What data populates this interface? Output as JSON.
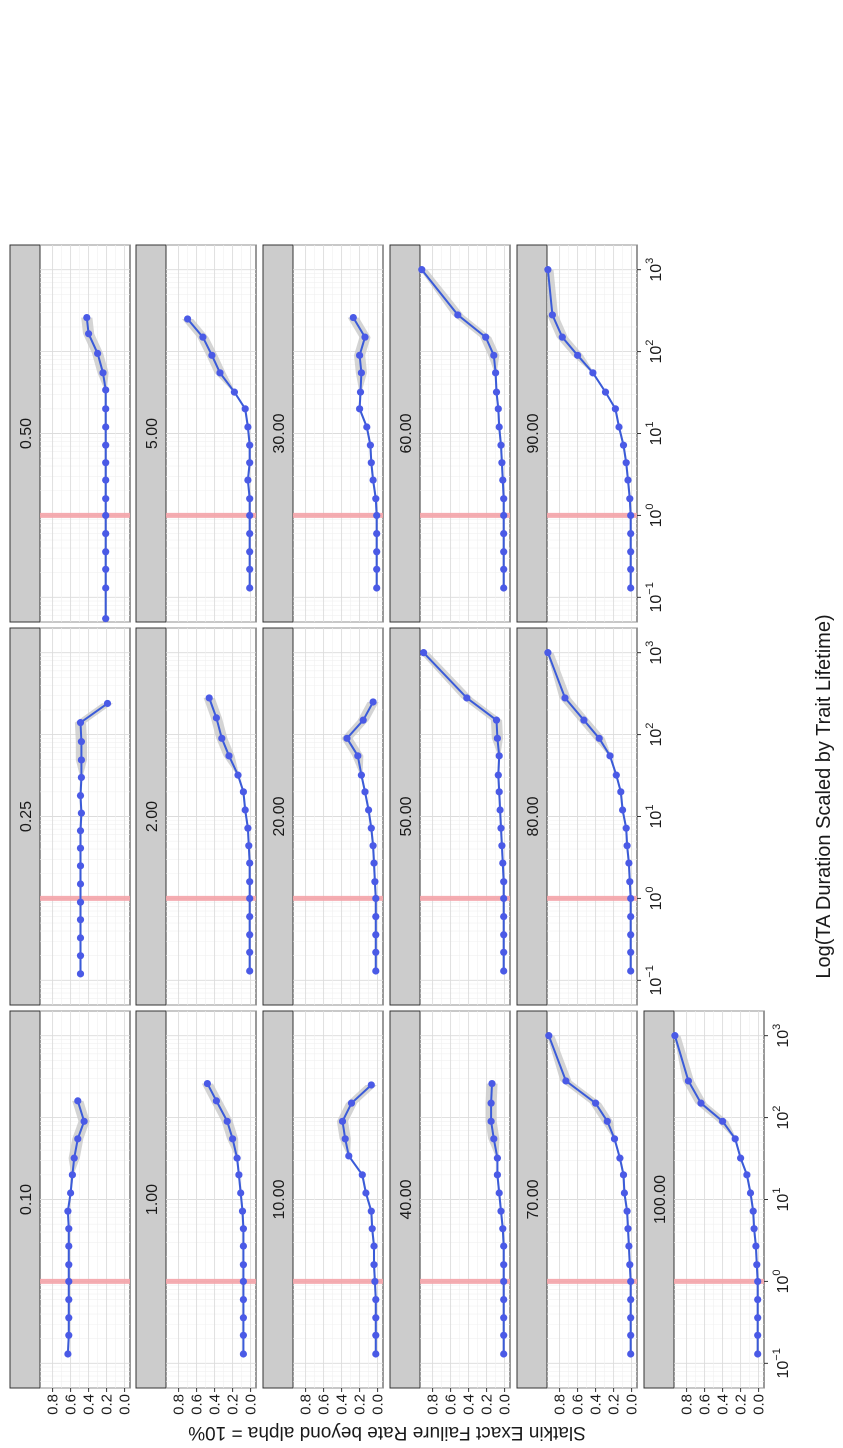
{
  "chart_data": {
    "type": "line",
    "ylabel": "Slatkin Exact Failure Rate beyond alpha = 10%",
    "xlabel": "Log(TA Duration Scaled by Trait Lifetime)",
    "xscale": "log",
    "xlim": [
      0.05,
      2000
    ],
    "ylim": [
      -0.06,
      0.94
    ],
    "x_ticks": [
      "0.1",
      "1",
      "10",
      "100",
      "1000"
    ],
    "x_tick_labels": [
      {
        "base": "10",
        "exp": "−1"
      },
      {
        "base": "10",
        "exp": "0"
      },
      {
        "base": "10",
        "exp": "1"
      },
      {
        "base": "10",
        "exp": "2"
      },
      {
        "base": "10",
        "exp": "3"
      }
    ],
    "y_ticks": [
      0.0,
      0.2,
      0.4,
      0.6,
      0.8
    ],
    "y_tick_labels": [
      "0.0",
      "0.2",
      "0.4",
      "0.6",
      "0.8"
    ],
    "reference_line": {
      "x": 1,
      "color": "#f4a3a8"
    },
    "line_color": "#3a5bd9",
    "point_color": "#4a5ae6",
    "band_color": "#c9c9c9",
    "strip_color": "#cccccc",
    "panels": [
      {
        "label": "0.10",
        "x": [
          0.13,
          0.22,
          0.36,
          0.6,
          1,
          1.6,
          2.7,
          4.4,
          7.2,
          12,
          20,
          32,
          55,
          90,
          160
        ],
        "y": [
          0.63,
          0.62,
          0.62,
          0.62,
          0.62,
          0.62,
          0.62,
          0.62,
          0.63,
          0.6,
          0.58,
          0.56,
          0.52,
          0.45,
          0.52
        ]
      },
      {
        "label": "0.25",
        "x": [
          0.12,
          0.2,
          0.33,
          0.55,
          0.9,
          1.5,
          2.5,
          4.1,
          6.7,
          11,
          18,
          30,
          49,
          82,
          140,
          240
        ],
        "y": [
          0.49,
          0.49,
          0.49,
          0.49,
          0.49,
          0.49,
          0.49,
          0.49,
          0.49,
          0.48,
          0.49,
          0.48,
          0.48,
          0.48,
          0.49,
          0.19
        ]
      },
      {
        "label": "0.50",
        "x": [
          0.055,
          0.13,
          0.22,
          0.36,
          0.6,
          1,
          1.6,
          2.7,
          4.4,
          7.2,
          12,
          20,
          34,
          55,
          95,
          165,
          260
        ],
        "y": [
          0.21,
          0.21,
          0.21,
          0.21,
          0.21,
          0.21,
          0.21,
          0.21,
          0.21,
          0.21,
          0.21,
          0.21,
          0.21,
          0.24,
          0.3,
          0.4,
          0.42
        ]
      },
      {
        "label": "1.00",
        "x": [
          0.13,
          0.22,
          0.36,
          0.6,
          1,
          1.6,
          2.7,
          4.4,
          7.2,
          12,
          20,
          32,
          55,
          90,
          160,
          260
        ],
        "y": [
          0.08,
          0.08,
          0.08,
          0.08,
          0.08,
          0.08,
          0.08,
          0.08,
          0.09,
          0.11,
          0.13,
          0.15,
          0.2,
          0.26,
          0.38,
          0.48
        ]
      },
      {
        "label": "2.00",
        "x": [
          0.13,
          0.22,
          0.36,
          0.6,
          1,
          1.6,
          2.7,
          4.4,
          7.2,
          12,
          20,
          32,
          55,
          90,
          160,
          280
        ],
        "y": [
          0.01,
          0.01,
          0.01,
          0.01,
          0.01,
          0.01,
          0.01,
          0.02,
          0.03,
          0.06,
          0.08,
          0.14,
          0.24,
          0.32,
          0.38,
          0.46
        ]
      },
      {
        "label": "5.00",
        "x": [
          0.13,
          0.22,
          0.36,
          0.6,
          1,
          1.6,
          2.7,
          4.4,
          7.2,
          12,
          20,
          32,
          55,
          90,
          150,
          250
        ],
        "y": [
          0.01,
          0.01,
          0.01,
          0.01,
          0.01,
          0.01,
          0.03,
          0.01,
          0.01,
          0.03,
          0.06,
          0.18,
          0.34,
          0.43,
          0.53,
          0.7
        ]
      },
      {
        "label": "10.00",
        "x": [
          0.13,
          0.22,
          0.36,
          0.6,
          1,
          1.6,
          2.7,
          4.4,
          7.2,
          12,
          20,
          34,
          55,
          90,
          150,
          250
        ],
        "y": [
          0.02,
          0.02,
          0.02,
          0.02,
          0.03,
          0.04,
          0.04,
          0.06,
          0.07,
          0.13,
          0.17,
          0.32,
          0.36,
          0.39,
          0.29,
          0.07
        ]
      },
      {
        "label": "20.00",
        "x": [
          0.13,
          0.22,
          0.36,
          0.6,
          1,
          1.6,
          2.7,
          4.4,
          7.2,
          12,
          20,
          32,
          55,
          90,
          150,
          250
        ],
        "y": [
          0.02,
          0.02,
          0.02,
          0.02,
          0.02,
          0.03,
          0.04,
          0.05,
          0.07,
          0.1,
          0.14,
          0.18,
          0.22,
          0.34,
          0.16,
          0.05
        ]
      },
      {
        "label": "30.00",
        "x": [
          0.13,
          0.22,
          0.36,
          0.6,
          1,
          1.6,
          2.7,
          4.4,
          7.2,
          12,
          20,
          32,
          55,
          90,
          150,
          260
        ],
        "y": [
          0.01,
          0.01,
          0.01,
          0.01,
          0.01,
          0.02,
          0.05,
          0.07,
          0.08,
          0.12,
          0.2,
          0.19,
          0.18,
          0.2,
          0.14,
          0.27
        ]
      },
      {
        "label": "40.00",
        "x": [
          0.13,
          0.22,
          0.36,
          0.6,
          1,
          1.6,
          2.7,
          4.4,
          7.2,
          12,
          20,
          32,
          55,
          90,
          150,
          260
        ],
        "y": [
          0.01,
          0.01,
          0.01,
          0.01,
          0.01,
          0.01,
          0.01,
          0.02,
          0.04,
          0.06,
          0.08,
          0.08,
          0.12,
          0.15,
          0.15,
          0.14
        ]
      },
      {
        "label": "50.00",
        "x": [
          0.13,
          0.22,
          0.36,
          0.6,
          1,
          1.6,
          2.7,
          4.4,
          7.2,
          12,
          20,
          32,
          55,
          90,
          150,
          280,
          1000
        ],
        "y": [
          0.01,
          0.01,
          0.01,
          0.01,
          0.01,
          0.01,
          0.02,
          0.03,
          0.04,
          0.05,
          0.06,
          0.07,
          0.06,
          0.08,
          0.09,
          0.42,
          0.9
        ]
      },
      {
        "label": "60.00",
        "x": [
          0.13,
          0.22,
          0.36,
          0.6,
          1,
          1.6,
          2.7,
          4.4,
          7.2,
          12,
          20,
          32,
          55,
          90,
          150,
          280,
          1000
        ],
        "y": [
          0.01,
          0.01,
          0.01,
          0.01,
          0.01,
          0.01,
          0.02,
          0.03,
          0.04,
          0.06,
          0.07,
          0.09,
          0.1,
          0.12,
          0.21,
          0.52,
          0.92
        ]
      },
      {
        "label": "70.00",
        "x": [
          0.13,
          0.22,
          0.36,
          0.6,
          1,
          1.6,
          2.7,
          4.4,
          7.2,
          12,
          20,
          32,
          55,
          90,
          150,
          280,
          1000
        ],
        "y": [
          0.01,
          0.01,
          0.01,
          0.01,
          0.01,
          0.02,
          0.03,
          0.04,
          0.05,
          0.08,
          0.09,
          0.13,
          0.19,
          0.27,
          0.4,
          0.73,
          0.92
        ]
      },
      {
        "label": "80.00",
        "x": [
          0.13,
          0.22,
          0.36,
          0.6,
          1,
          1.6,
          2.7,
          4.4,
          7.2,
          12,
          20,
          32,
          55,
          90,
          150,
          280,
          1000
        ],
        "y": [
          0.01,
          0.01,
          0.01,
          0.01,
          0.01,
          0.02,
          0.03,
          0.05,
          0.06,
          0.1,
          0.12,
          0.17,
          0.24,
          0.36,
          0.53,
          0.74,
          0.93
        ]
      },
      {
        "label": "90.00",
        "x": [
          0.13,
          0.22,
          0.36,
          0.6,
          1,
          1.6,
          2.7,
          4.4,
          7.2,
          12,
          20,
          32,
          55,
          90,
          150,
          280,
          1000
        ],
        "y": [
          0.01,
          0.01,
          0.01,
          0.01,
          0.01,
          0.02,
          0.04,
          0.06,
          0.09,
          0.14,
          0.18,
          0.29,
          0.43,
          0.6,
          0.77,
          0.88,
          0.93
        ]
      },
      {
        "label": "100.00",
        "x": [
          0.13,
          0.22,
          0.36,
          0.6,
          1,
          1.6,
          2.7,
          4.4,
          7.2,
          12,
          20,
          32,
          55,
          90,
          150,
          280,
          1000
        ],
        "y": [
          0.01,
          0.01,
          0.01,
          0.01,
          0.01,
          0.02,
          0.03,
          0.05,
          0.06,
          0.09,
          0.13,
          0.2,
          0.26,
          0.4,
          0.64,
          0.78,
          0.93
        ]
      }
    ]
  }
}
